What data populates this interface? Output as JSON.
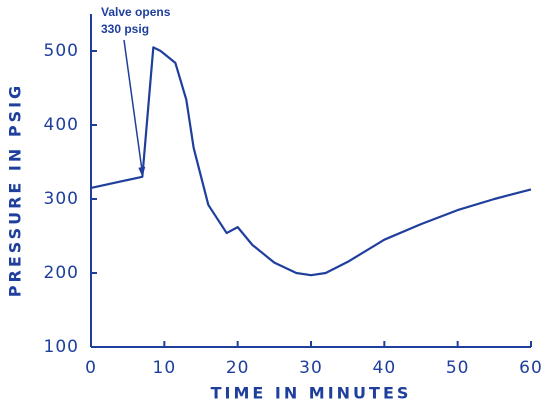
{
  "chart_data": {
    "type": "line",
    "xlabel": "TIME IN MINUTES",
    "ylabel": "PRESSURE IN PSIG",
    "color": "#1f3f9c",
    "xlim": [
      0,
      60
    ],
    "xticks": [
      0,
      10,
      20,
      30,
      40,
      50,
      60
    ],
    "ylim": [
      100,
      550
    ],
    "yticks": [
      100,
      200,
      300,
      400,
      500
    ],
    "x": [
      0,
      7,
      8.5,
      9.5,
      11.5,
      13,
      14,
      16,
      18.5,
      20,
      22,
      25,
      28,
      30,
      32,
      35,
      40,
      45,
      50,
      55,
      60
    ],
    "values": [
      315,
      330,
      505,
      500,
      484,
      434,
      369,
      292,
      254,
      262,
      238,
      214,
      200,
      197,
      200,
      215,
      245,
      266,
      285,
      300,
      313
    ],
    "annotation": {
      "text": [
        "Valve opens",
        "330 psig"
      ],
      "point": [
        7,
        330
      ]
    }
  }
}
